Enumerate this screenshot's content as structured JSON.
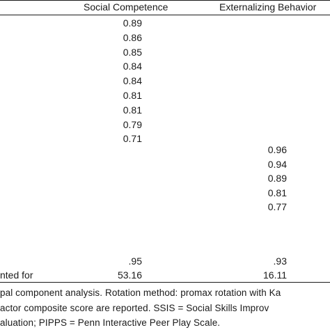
{
  "table": {
    "headers": {
      "social_competence": "Social Competence",
      "externalizing_behavior": "Externalizing Behavior"
    },
    "social_competence_loadings": [
      "0.89",
      "0.86",
      "0.85",
      "0.84",
      "0.84",
      "0.81",
      "0.81",
      "0.79",
      "0.71"
    ],
    "externalizing_loadings": [
      "0.96",
      "0.94",
      "0.89",
      "0.81",
      "0.77"
    ],
    "alpha_row": {
      "social": ".95",
      "externalizing": ".93"
    },
    "variance_row": {
      "label": "nted for",
      "social": "53.16",
      "externalizing": "16.11"
    }
  },
  "notes": {
    "line1": "pal component analysis. Rotation method: promax rotation with Ka",
    "line2": "actor composite score are reported. SSIS = Social Skills Improv",
    "line3": "aluation; PIPPS = Penn Interactive Peer Play Scale."
  }
}
